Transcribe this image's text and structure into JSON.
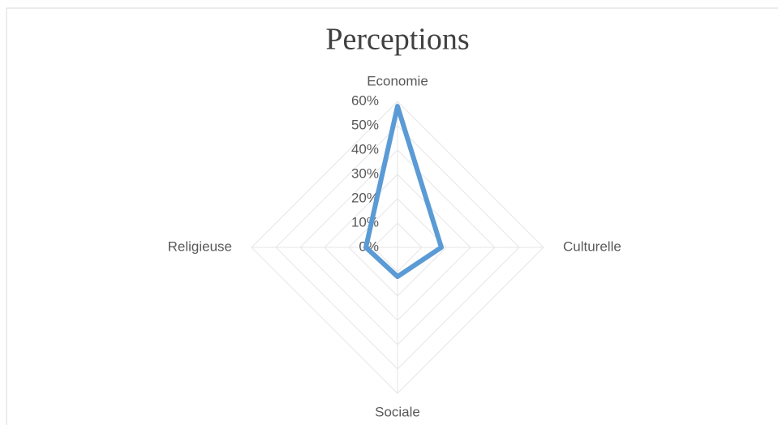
{
  "chart_data": {
    "type": "radar",
    "title": "Perceptions",
    "categories": [
      "Economie",
      "Culturelle",
      "Sociale",
      "Religieuse"
    ],
    "series": [
      {
        "name": "Perceptions",
        "color": "#5b9bd5",
        "values": [
          58,
          18,
          12,
          13
        ]
      }
    ],
    "ylim": [
      0,
      60
    ],
    "yticks": [
      {
        "value": 0,
        "label": "0%"
      },
      {
        "value": 10,
        "label": "10%"
      },
      {
        "value": 20,
        "label": "20%"
      },
      {
        "value": 30,
        "label": "30%"
      },
      {
        "value": 40,
        "label": "40%"
      },
      {
        "value": 50,
        "label": "50%"
      },
      {
        "value": 60,
        "label": "60%"
      }
    ],
    "grid": true
  }
}
